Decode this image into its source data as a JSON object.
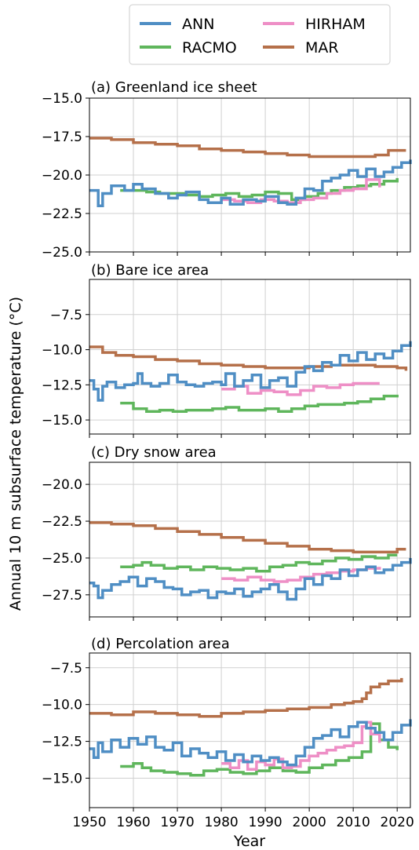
{
  "figure": {
    "ylabel": "Annual 10 m subsurface temperature (°C)",
    "xlabel": "Year",
    "x_ticks": [
      1950,
      1960,
      1970,
      1980,
      1990,
      2000,
      2010,
      2020
    ],
    "legend": {
      "placement": "top-center",
      "entries": [
        {
          "name": "ANN",
          "color": "#4f8ec4"
        },
        {
          "name": "HIRHAM",
          "color": "#ee8fc6"
        },
        {
          "name": "RACMO",
          "color": "#5fb65c"
        },
        {
          "name": "MAR",
          "color": "#b5704a"
        }
      ]
    }
  },
  "chart_data": [
    {
      "type": "line",
      "title": "(a) Greenland ice sheet",
      "xlim": [
        1950,
        2023
      ],
      "ylim": [
        -25.0,
        -15.0
      ],
      "y_ticks": [
        "−15.0",
        "−17.5",
        "−20.0",
        "−22.5",
        "−25.0"
      ],
      "y_tick_values": [
        -15.0,
        -17.5,
        -20.0,
        -22.5,
        -25.0
      ],
      "grid": true,
      "series": [
        {
          "name": "MAR",
          "color": "#b5704a",
          "x": [
            1950,
            1955,
            1960,
            1965,
            1970,
            1975,
            1980,
            1985,
            1990,
            1995,
            2000,
            2005,
            2010,
            2015,
            2018,
            2022
          ],
          "y": [
            -17.6,
            -17.7,
            -17.9,
            -18.0,
            -18.1,
            -18.3,
            -18.4,
            -18.5,
            -18.6,
            -18.7,
            -18.8,
            -18.8,
            -18.8,
            -18.7,
            -18.4,
            -18.4
          ]
        },
        {
          "name": "ANN",
          "color": "#4f8ec4",
          "x": [
            1950,
            1951,
            1952,
            1953,
            1955,
            1958,
            1960,
            1962,
            1965,
            1968,
            1970,
            1972,
            1975,
            1977,
            1980,
            1982,
            1985,
            1988,
            1990,
            1993,
            1995,
            1997,
            1999,
            2001,
            2003,
            2005,
            2007,
            2009,
            2011,
            2013,
            2015,
            2017,
            2019,
            2021,
            2023
          ],
          "y": [
            -21.0,
            -21.0,
            -22.0,
            -21.2,
            -20.7,
            -21.0,
            -20.6,
            -20.9,
            -21.2,
            -21.5,
            -21.3,
            -21.1,
            -21.6,
            -21.8,
            -21.5,
            -21.9,
            -21.6,
            -21.7,
            -21.4,
            -21.8,
            -21.9,
            -21.5,
            -20.9,
            -21.0,
            -20.4,
            -20.2,
            -20.0,
            -19.7,
            -20.1,
            -19.6,
            -20.1,
            -19.8,
            -19.5,
            -19.2,
            -19.0
          ]
        },
        {
          "name": "RACMO",
          "color": "#5fb65c",
          "x": [
            1957,
            1960,
            1963,
            1966,
            1969,
            1972,
            1975,
            1978,
            1981,
            1984,
            1987,
            1990,
            1993,
            1996,
            1999,
            2002,
            2005,
            2008,
            2011,
            2014,
            2017,
            2020
          ],
          "y": [
            -21.0,
            -21.0,
            -21.1,
            -21.2,
            -21.2,
            -21.3,
            -21.4,
            -21.3,
            -21.2,
            -21.4,
            -21.3,
            -21.1,
            -21.2,
            -21.6,
            -21.4,
            -21.2,
            -21.0,
            -20.8,
            -20.7,
            -20.6,
            -20.4,
            -20.2
          ]
        },
        {
          "name": "HIRHAM",
          "color": "#ee8fc6",
          "x": [
            1980,
            1983,
            1986,
            1989,
            1992,
            1995,
            1998,
            2001,
            2004,
            2007,
            2010,
            2013,
            2016
          ],
          "y": [
            -21.6,
            -21.7,
            -21.8,
            -21.6,
            -21.7,
            -21.8,
            -21.6,
            -21.5,
            -21.2,
            -21.0,
            -20.9,
            -20.3,
            -20.8
          ]
        }
      ]
    },
    {
      "type": "line",
      "title": "(b) Bare ice area",
      "xlim": [
        1950,
        2023
      ],
      "ylim": [
        -16.0,
        -5.0
      ],
      "y_ticks": [
        "−7.5",
        "−10.0",
        "−12.5",
        "−15.0"
      ],
      "y_tick_values": [
        -7.5,
        -10.0,
        -12.5,
        -15.0
      ],
      "grid": true,
      "series": [
        {
          "name": "MAR",
          "color": "#b5704a",
          "x": [
            1950,
            1953,
            1956,
            1960,
            1965,
            1970,
            1975,
            1980,
            1985,
            1990,
            1995,
            2000,
            2005,
            2010,
            2015,
            2020,
            2022
          ],
          "y": [
            -9.8,
            -10.2,
            -10.4,
            -10.5,
            -10.7,
            -10.8,
            -11.0,
            -11.1,
            -11.2,
            -11.3,
            -11.3,
            -11.2,
            -11.1,
            -11.1,
            -11.2,
            -11.3,
            -11.5
          ]
        },
        {
          "name": "ANN",
          "color": "#4f8ec4",
          "x": [
            1950,
            1951,
            1952,
            1953,
            1954,
            1956,
            1958,
            1960,
            1961,
            1962,
            1964,
            1966,
            1968,
            1970,
            1972,
            1974,
            1976,
            1978,
            1980,
            1981,
            1983,
            1985,
            1987,
            1989,
            1991,
            1993,
            1995,
            1997,
            1999,
            2001,
            2003,
            2005,
            2007,
            2009,
            2011,
            2013,
            2015,
            2017,
            2019,
            2021,
            2023
          ],
          "y": [
            -12.2,
            -12.8,
            -13.6,
            -12.6,
            -12.3,
            -12.7,
            -12.5,
            -12.4,
            -11.7,
            -12.4,
            -12.6,
            -12.4,
            -11.8,
            -12.3,
            -12.5,
            -12.6,
            -12.4,
            -12.3,
            -12.5,
            -11.7,
            -12.6,
            -12.2,
            -11.8,
            -12.7,
            -12.2,
            -12.0,
            -12.6,
            -11.6,
            -11.2,
            -11.5,
            -10.9,
            -11.1,
            -10.4,
            -10.8,
            -10.2,
            -10.7,
            -10.3,
            -10.6,
            -10.1,
            -9.7,
            -9.4
          ]
        },
        {
          "name": "RACMO",
          "color": "#5fb65c",
          "x": [
            1957,
            1960,
            1963,
            1966,
            1969,
            1972,
            1975,
            1978,
            1981,
            1984,
            1987,
            1990,
            1993,
            1996,
            1999,
            2002,
            2005,
            2008,
            2011,
            2014,
            2017,
            2020
          ],
          "y": [
            -13.8,
            -14.2,
            -14.4,
            -14.3,
            -14.4,
            -14.3,
            -14.3,
            -14.2,
            -14.1,
            -14.3,
            -14.3,
            -14.2,
            -14.4,
            -14.2,
            -14.0,
            -13.9,
            -13.9,
            -13.8,
            -13.7,
            -13.5,
            -13.3,
            -13.4
          ]
        },
        {
          "name": "HIRHAM",
          "color": "#ee8fc6",
          "x": [
            1980,
            1983,
            1986,
            1989,
            1992,
            1995,
            1998,
            2001,
            2004,
            2007,
            2010,
            2013,
            2016
          ],
          "y": [
            -12.8,
            -12.6,
            -13.1,
            -12.9,
            -13.0,
            -13.2,
            -12.9,
            -12.6,
            -12.7,
            -12.5,
            -12.4,
            -12.4,
            -12.4
          ]
        }
      ]
    },
    {
      "type": "line",
      "title": "(c) Dry snow area",
      "xlim": [
        1950,
        2023
      ],
      "ylim": [
        -29.0,
        -18.5
      ],
      "y_ticks": [
        "−20.0",
        "−22.5",
        "−25.0",
        "−27.5"
      ],
      "y_tick_values": [
        -20.0,
        -22.5,
        -25.0,
        -27.5
      ],
      "grid": true,
      "series": [
        {
          "name": "MAR",
          "color": "#b5704a",
          "x": [
            1950,
            1955,
            1960,
            1965,
            1970,
            1975,
            1980,
            1985,
            1990,
            1995,
            2000,
            2005,
            2010,
            2015,
            2020,
            2022
          ],
          "y": [
            -22.6,
            -22.7,
            -22.8,
            -23.0,
            -23.2,
            -23.4,
            -23.6,
            -23.8,
            -24.0,
            -24.2,
            -24.4,
            -24.5,
            -24.6,
            -24.6,
            -24.4,
            -24.4
          ]
        },
        {
          "name": "ANN",
          "color": "#4f8ec4",
          "x": [
            1950,
            1951,
            1952,
            1953,
            1955,
            1957,
            1959,
            1961,
            1963,
            1965,
            1967,
            1969,
            1971,
            1973,
            1975,
            1977,
            1979,
            1981,
            1983,
            1985,
            1987,
            1989,
            1991,
            1993,
            1995,
            1997,
            1999,
            2001,
            2003,
            2005,
            2007,
            2009,
            2011,
            2013,
            2015,
            2017,
            2019,
            2021,
            2023
          ],
          "y": [
            -26.7,
            -26.9,
            -27.7,
            -27.2,
            -26.8,
            -26.6,
            -26.3,
            -26.9,
            -26.4,
            -26.6,
            -27.0,
            -27.1,
            -27.5,
            -27.3,
            -27.2,
            -27.7,
            -27.3,
            -27.4,
            -27.1,
            -27.6,
            -27.3,
            -27.1,
            -26.8,
            -27.3,
            -27.8,
            -27.1,
            -26.4,
            -26.8,
            -26.2,
            -26.4,
            -25.8,
            -26.2,
            -25.8,
            -25.6,
            -26.0,
            -25.8,
            -25.5,
            -25.3,
            -25.0
          ]
        },
        {
          "name": "RACMO",
          "color": "#5fb65c",
          "x": [
            1957,
            1960,
            1962,
            1964,
            1967,
            1970,
            1973,
            1976,
            1979,
            1982,
            1985,
            1988,
            1991,
            1994,
            1997,
            2000,
            2003,
            2006,
            2009,
            2012,
            2015,
            2018,
            2020
          ],
          "y": [
            -25.6,
            -25.5,
            -25.3,
            -25.5,
            -25.7,
            -25.6,
            -25.8,
            -25.6,
            -25.7,
            -25.8,
            -25.7,
            -25.9,
            -25.6,
            -25.5,
            -25.3,
            -25.4,
            -25.2,
            -25.0,
            -25.1,
            -24.9,
            -25.0,
            -24.8,
            -24.8
          ]
        },
        {
          "name": "HIRHAM",
          "color": "#ee8fc6",
          "x": [
            1980,
            1983,
            1986,
            1989,
            1992,
            1995,
            1998,
            2001,
            2004,
            2007,
            2010,
            2013,
            2016
          ],
          "y": [
            -26.4,
            -26.5,
            -26.3,
            -26.5,
            -26.6,
            -26.5,
            -26.3,
            -26.1,
            -26.0,
            -25.9,
            -25.8,
            -25.7,
            -25.6
          ]
        }
      ]
    },
    {
      "type": "line",
      "title": "(d) Percolation area",
      "xlim": [
        1950,
        2023
      ],
      "ylim": [
        -17.0,
        -6.5
      ],
      "y_ticks": [
        "−7.5",
        "−10.0",
        "−12.5",
        "−15.0"
      ],
      "y_tick_values": [
        -7.5,
        -10.0,
        -12.5,
        -15.0
      ],
      "grid": true,
      "series": [
        {
          "name": "MAR",
          "color": "#b5704a",
          "x": [
            1950,
            1955,
            1960,
            1965,
            1970,
            1975,
            1980,
            1985,
            1990,
            1995,
            2000,
            2005,
            2008,
            2010,
            2012,
            2013,
            2014,
            2016,
            2018,
            2021
          ],
          "y": [
            -10.6,
            -10.7,
            -10.5,
            -10.6,
            -10.7,
            -10.8,
            -10.6,
            -10.5,
            -10.4,
            -10.3,
            -10.2,
            -10.0,
            -9.9,
            -9.8,
            -9.6,
            -9.2,
            -8.8,
            -8.6,
            -8.4,
            -8.2
          ]
        },
        {
          "name": "ANN",
          "color": "#4f8ec4",
          "x": [
            1950,
            1951,
            1952,
            1953,
            1955,
            1957,
            1959,
            1961,
            1963,
            1965,
            1967,
            1969,
            1971,
            1973,
            1975,
            1977,
            1979,
            1981,
            1983,
            1985,
            1987,
            1989,
            1991,
            1993,
            1995,
            1997,
            1999,
            2001,
            2003,
            2005,
            2007,
            2009,
            2011,
            2013,
            2015,
            2017,
            2019,
            2021,
            2023
          ],
          "y": [
            -13.0,
            -13.6,
            -12.6,
            -13.2,
            -12.4,
            -12.9,
            -12.3,
            -12.7,
            -12.2,
            -12.9,
            -13.1,
            -12.6,
            -13.5,
            -13.0,
            -13.3,
            -13.6,
            -13.2,
            -13.8,
            -13.4,
            -13.9,
            -13.5,
            -13.8,
            -13.6,
            -13.9,
            -14.1,
            -13.5,
            -12.9,
            -12.3,
            -12.1,
            -11.7,
            -12.2,
            -11.5,
            -11.2,
            -11.6,
            -11.9,
            -12.4,
            -11.9,
            -11.4,
            -11.0
          ]
        },
        {
          "name": "RACMO",
          "color": "#5fb65c",
          "x": [
            1957,
            1960,
            1962,
            1964,
            1967,
            1970,
            1973,
            1976,
            1979,
            1982,
            1985,
            1988,
            1991,
            1994,
            1997,
            2000,
            2003,
            2006,
            2009,
            2012,
            2014,
            2016,
            2018,
            2020
          ],
          "y": [
            -14.2,
            -14.0,
            -14.3,
            -14.5,
            -14.6,
            -14.7,
            -14.8,
            -14.5,
            -14.4,
            -14.6,
            -14.7,
            -14.5,
            -14.3,
            -14.5,
            -14.6,
            -14.3,
            -14.1,
            -13.8,
            -13.6,
            -13.2,
            -11.3,
            -12.4,
            -12.9,
            -13.1
          ]
        },
        {
          "name": "HIRHAM",
          "color": "#ee8fc6",
          "x": [
            1980,
            1982,
            1984,
            1986,
            1988,
            1990,
            1992,
            1994,
            1996,
            1998,
            2000,
            2002,
            2004,
            2006,
            2008,
            2010,
            2012,
            2013,
            2014,
            2016
          ],
          "y": [
            -14.0,
            -14.3,
            -13.8,
            -14.4,
            -13.9,
            -14.1,
            -13.7,
            -14.3,
            -14.2,
            -13.8,
            -13.5,
            -13.3,
            -13.1,
            -12.9,
            -12.8,
            -12.6,
            -11.5,
            -11.2,
            -12.0,
            -12.6
          ]
        }
      ]
    }
  ]
}
